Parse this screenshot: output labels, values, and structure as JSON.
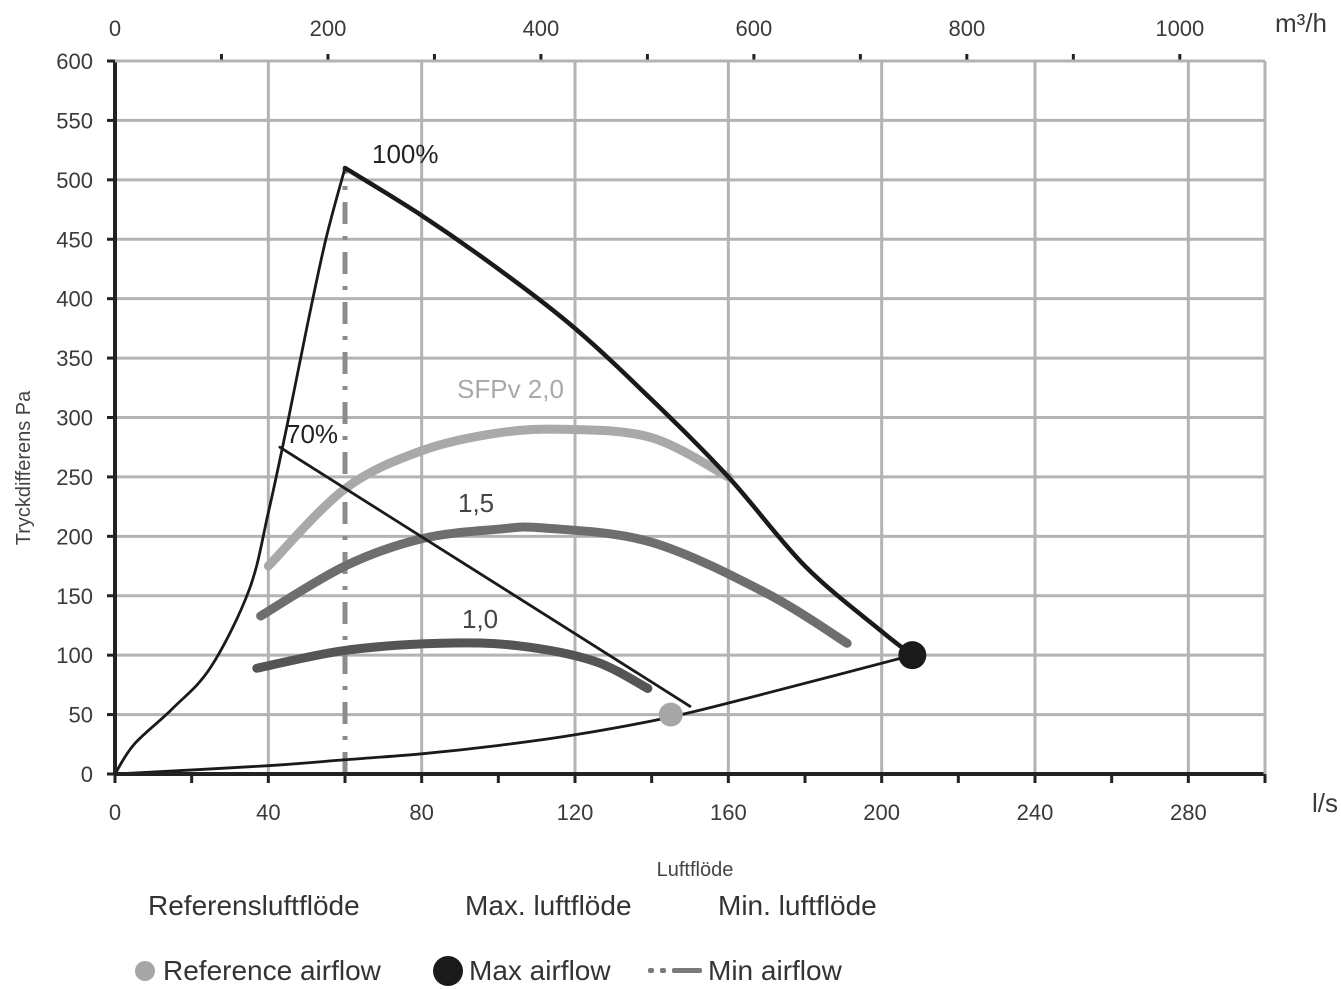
{
  "chart_data": {
    "type": "line",
    "ylabel": "Tryckdifferens Pa",
    "xlabel": "Luftflöde",
    "x_unit_bottom": "l/s",
    "x_unit_top": "m³/h",
    "xlim": [
      0,
      300
    ],
    "ylim": [
      0,
      600
    ],
    "x_ticks": [
      "0",
      "40",
      "80",
      "120",
      "160",
      "200",
      "240",
      "280"
    ],
    "x_tick_values": [
      0,
      40,
      80,
      120,
      160,
      200,
      240,
      280
    ],
    "top_ticks": [
      "0",
      "200",
      "400",
      "600",
      "800",
      "1000"
    ],
    "top_tick_values_m3h": [
      0,
      200,
      400,
      600,
      800,
      1000
    ],
    "y_ticks": [
      "0",
      "50",
      "100",
      "150",
      "200",
      "250",
      "300",
      "350",
      "400",
      "450",
      "500",
      "550",
      "600"
    ],
    "y_tick_values": [
      0,
      50,
      100,
      150,
      200,
      250,
      300,
      350,
      400,
      450,
      500,
      550,
      600
    ],
    "grid": true,
    "curves": [
      {
        "label": "100%",
        "color": "#1a1a1a",
        "x": [
          0,
          5,
          15,
          25,
          35,
          40,
          45,
          50,
          55,
          60
        ],
        "y": [
          0,
          25,
          55,
          90,
          155,
          220,
          295,
          375,
          450,
          510
        ]
      },
      {
        "label": "",
        "color": "#1a1a1a",
        "x": [
          60,
          80,
          100,
          120,
          140,
          160,
          180,
          200,
          208
        ],
        "y": [
          510,
          470,
          425,
          375,
          315,
          250,
          175,
          120,
          100
        ]
      },
      {
        "label": "70%",
        "color": "#1a1a1a",
        "x": [
          43,
          150
        ],
        "y": [
          275,
          57
        ]
      },
      {
        "label": "",
        "color": "#1a1a1a",
        "x": [
          0,
          40,
          60,
          80,
          100,
          120,
          145,
          170,
          208
        ],
        "y": [
          0,
          7,
          12,
          17,
          24,
          33,
          48,
          68,
          100
        ]
      }
    ],
    "series": [
      {
        "name": "SFPv 2,0",
        "color": "#a9a9a9",
        "x": [
          40,
          60,
          80,
          100,
          118,
          140,
          160
        ],
        "y": [
          175,
          240,
          272,
          287,
          290,
          283,
          250
        ]
      },
      {
        "name": "1,5",
        "color": "#6e6e6e",
        "x": [
          38,
          60,
          80,
          100,
          112,
          140,
          170,
          191
        ],
        "y": [
          133,
          175,
          198,
          206,
          207,
          195,
          152,
          110
        ]
      },
      {
        "name": "1,0",
        "color": "#555555",
        "x": [
          37,
          60,
          85,
          105,
          125,
          139
        ],
        "y": [
          89,
          104,
          110,
          108,
          95,
          72
        ]
      }
    ],
    "points": [
      {
        "name": "Reference airflow",
        "x": 145,
        "y": 50,
        "color": "#a6a6a6"
      },
      {
        "name": "Max airflow",
        "x": 208,
        "y": 100,
        "color": "#1a1a1a"
      }
    ],
    "min_airflow_x": 60,
    "min_airflow_ylim": [
      0,
      510
    ]
  },
  "legend": {
    "sv": [
      "Referensluftflöde",
      "Max. luftflöde",
      "Min. luftflöde"
    ],
    "en": [
      "Reference airflow",
      "Max airflow",
      "Min airflow"
    ]
  }
}
